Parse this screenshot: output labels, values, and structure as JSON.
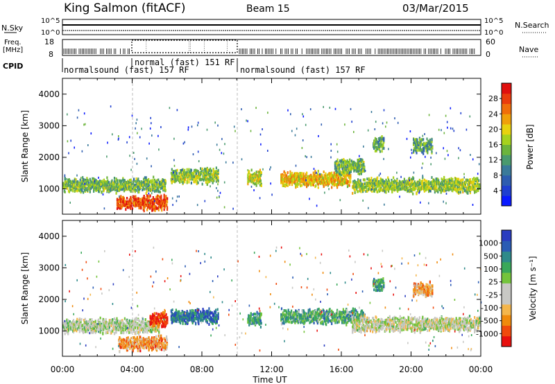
{
  "header": {
    "station": "King Salmon (fitACF)",
    "beam": "Beam 15",
    "date": "03/Mar/2015"
  },
  "params": {
    "nsky_label": "N.Sky",
    "nsky_ticks": [
      "10^5",
      "10^0"
    ],
    "nsearch_label": "N.Search",
    "nsearch_ticks": [
      "10^5",
      "10^0"
    ],
    "freq_label_1": "Freq.",
    "freq_label_2": "[MHz]",
    "freq_ticks": [
      "18",
      "8"
    ],
    "nave_label": "Nave",
    "nave_ticks": [
      "60",
      "0"
    ],
    "cpid_label": "CPID",
    "segments": [
      {
        "label": "normalsound (fast) 157 RF",
        "start": 0,
        "end": 10
      },
      {
        "label": "normal (fast) 151 RF",
        "start": 4,
        "end": 10
      },
      {
        "label": "normalsound (fast) 157 RF",
        "start": 10,
        "end": 24
      }
    ]
  },
  "chart_data": [
    {
      "type": "heatmap",
      "ylabel": "Slant Range [km]",
      "yticks": [
        "1000",
        "2000",
        "3000",
        "4000"
      ],
      "ylim": [
        200,
        4500
      ],
      "xlim": [
        0,
        24
      ],
      "colorbar": {
        "label": "Power [dB]",
        "ticks": [
          "4",
          "8",
          "12",
          "16",
          "20",
          "24",
          "28"
        ],
        "colors": [
          "#0a1aff",
          "#1f3fd0",
          "#2d5cb0",
          "#3a7a9a",
          "#4a9a6e",
          "#6cb43c",
          "#a6d21e",
          "#e8d20e",
          "#f0a00a",
          "#f06e0a",
          "#ea3c0c",
          "#e0100e"
        ]
      },
      "echo_bands": [
        {
          "t0": 0.0,
          "t1": 5.9,
          "r": 1150,
          "level": 0.45
        },
        {
          "t0": 3.1,
          "t1": 6.0,
          "r": 600,
          "level": 0.85
        },
        {
          "t0": 6.2,
          "t1": 8.9,
          "r": 1450,
          "level": 0.5
        },
        {
          "t0": 10.6,
          "t1": 11.4,
          "r": 1400,
          "level": 0.55
        },
        {
          "t0": 12.5,
          "t1": 16.5,
          "r": 1350,
          "level": 0.65
        },
        {
          "t0": 15.6,
          "t1": 17.3,
          "r": 1750,
          "level": 0.45
        },
        {
          "t0": 16.6,
          "t1": 23.9,
          "r": 1150,
          "level": 0.5
        },
        {
          "t0": 17.8,
          "t1": 18.4,
          "r": 2450,
          "level": 0.4
        },
        {
          "t0": 20.1,
          "t1": 21.2,
          "r": 2400,
          "level": 0.4
        }
      ]
    },
    {
      "type": "heatmap",
      "ylabel": "Slant Range [km]",
      "yticks": [
        "1000",
        "2000",
        "3000",
        "4000"
      ],
      "ylim": [
        200,
        4500
      ],
      "xlim": [
        0,
        24
      ],
      "xlabel": "Time UT",
      "xticks": [
        "00:00",
        "04:00",
        "08:00",
        "12:00",
        "16:00",
        "20:00",
        "00:00"
      ],
      "colorbar": {
        "label": "Velocity [m s⁻¹]",
        "ticks": [
          "-1000",
          "-500",
          "-100",
          "-25",
          "25",
          "100",
          "500",
          "1000"
        ],
        "colors": [
          "#e8100e",
          "#f04a0c",
          "#f08a0c",
          "#f4b64c",
          "#c8c8c4",
          "#c8c8c4",
          "#74c43c",
          "#3aa85a",
          "#2e8a8a",
          "#2a5cb4",
          "#2a3cc0"
        ]
      },
      "echo_bands": [
        {
          "t0": 0.0,
          "t1": 5.5,
          "r": 1200,
          "level": 0.5
        },
        {
          "t0": 3.2,
          "t1": 6.0,
          "r": 650,
          "level": 0.25
        },
        {
          "t0": 5.0,
          "t1": 6.0,
          "r": 1400,
          "level": 0.08
        },
        {
          "t0": 6.2,
          "t1": 8.9,
          "r": 1500,
          "level": 0.82
        },
        {
          "t0": 10.6,
          "t1": 11.4,
          "r": 1400,
          "level": 0.7
        },
        {
          "t0": 12.5,
          "t1": 17.3,
          "r": 1500,
          "level": 0.68
        },
        {
          "t0": 16.6,
          "t1": 23.9,
          "r": 1250,
          "level": 0.48
        },
        {
          "t0": 17.8,
          "t1": 18.4,
          "r": 2500,
          "level": 0.7
        },
        {
          "t0": 20.1,
          "t1": 21.2,
          "r": 2350,
          "level": 0.28
        }
      ]
    }
  ]
}
